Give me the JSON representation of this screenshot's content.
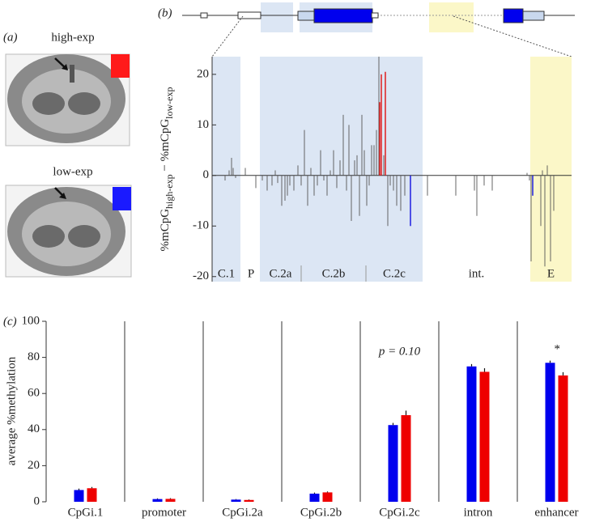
{
  "panel_labels": {
    "a": "(a)",
    "b": "(b)",
    "c": "(c)"
  },
  "images": {
    "high_label": "high-exp",
    "low_label": "low-exp"
  },
  "chart_data": [
    {
      "type": "spike",
      "ylabel": {
        "part1": "%mCpG",
        "sub1": "high-exp",
        "part2": " − %mCpG",
        "sub2": "low-exp"
      },
      "xlim": [
        0,
        444
      ],
      "ylim": [
        -21,
        23.5
      ],
      "yticks": [
        -20,
        -10,
        0,
        10,
        20
      ],
      "regions": [
        {
          "label": "C.1",
          "start": 0,
          "end": 35,
          "color": "#dce6f4"
        },
        {
          "label": "P",
          "start": 40,
          "end": 56,
          "color": null
        },
        {
          "label": "C.2a",
          "start": 59,
          "end": 110,
          "color": "#dce6f4"
        },
        {
          "label": "C.2b",
          "start": 110,
          "end": 190,
          "color": "#dce6f4"
        },
        {
          "label": "C.2c",
          "start": 190,
          "end": 260,
          "color": "#dce6f4"
        },
        {
          "label": "int.",
          "start": 260,
          "end": 393,
          "color": null
        },
        {
          "label": "E",
          "start": 393,
          "end": 444,
          "color": "#fbf7c8"
        }
      ],
      "series": [
        {
          "name": "other",
          "color": "#555555",
          "x": [
            16,
            21,
            24,
            26,
            29,
            41,
            54,
            62,
            68,
            74,
            78,
            81,
            86,
            90,
            93,
            96,
            101,
            106,
            110,
            114,
            118,
            122,
            126,
            130,
            134,
            138,
            142,
            146,
            150,
            154,
            158,
            162,
            166,
            169,
            172,
            176,
            179,
            182,
            185,
            188,
            191,
            194,
            197,
            200,
            203,
            206,
            212,
            217,
            220,
            224,
            228,
            233,
            238,
            266,
            301,
            324,
            327,
            336,
            346,
            389,
            392,
            394,
            406,
            408,
            411,
            414,
            418,
            422
          ],
          "values": [
            -1,
            1,
            3.5,
            1.5,
            -0.5,
            1.5,
            -2.5,
            -1,
            -3,
            -2,
            1,
            -1.5,
            -6,
            -5,
            -4,
            -2,
            -3,
            2,
            -2,
            9,
            -6,
            1.5,
            -4,
            -2,
            5,
            -1,
            -4,
            1,
            5,
            -2.5,
            3,
            12,
            -3,
            10,
            -9,
            3,
            4,
            -8,
            12,
            5,
            -6,
            -2,
            6,
            6,
            9,
            23.5,
            4,
            -10,
            -2,
            -3,
            -6,
            -7,
            -4,
            -4,
            -4,
            -3,
            -8,
            -2,
            -3,
            0.5,
            -1,
            -17,
            -10,
            1,
            -18,
            2,
            -17,
            -7
          ]
        },
        {
          "name": "high",
          "color": "#e0100f",
          "x": [
            207,
            209,
            214
          ],
          "values": [
            14.5,
            20,
            20.5
          ]
        },
        {
          "name": "low",
          "color": "#1010e0",
          "x": [
            245,
            396
          ],
          "values": [
            -10,
            -4
          ]
        }
      ]
    },
    {
      "type": "bar-panels",
      "ylabel": "average %methylation",
      "ylim": [
        0,
        100
      ],
      "yticks": [
        0,
        20,
        40,
        60,
        80,
        100
      ],
      "categories": [
        "CpGi.1",
        "promoter",
        "CpGi.2a",
        "CpGi.2b",
        "CpGi.2c",
        "intron",
        "enhancer"
      ],
      "series": [
        {
          "name": "low-exp",
          "color": "#0000ee",
          "values": [
            6.5,
            1.5,
            1.2,
            4.5,
            42.5,
            75,
            77
          ],
          "errors": [
            0.8,
            0.4,
            0.3,
            0.6,
            1.2,
            1.3,
            1.2
          ]
        },
        {
          "name": "high-exp",
          "color": "#ee0000",
          "values": [
            7.5,
            1.6,
            1,
            5.2,
            48,
            72,
            70
          ],
          "errors": [
            0.7,
            0.4,
            0.3,
            0.5,
            2.5,
            2,
            1.8
          ]
        }
      ],
      "annotations": [
        {
          "category": 4,
          "text": "p = 0.10"
        },
        {
          "category": 6,
          "text": "*"
        }
      ]
    }
  ]
}
